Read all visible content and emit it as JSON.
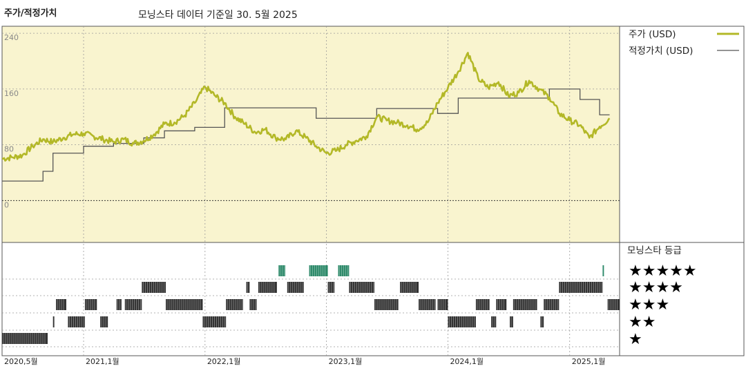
{
  "header": {
    "left_title": "주가/적정가치",
    "sub_title": "모닝스타 데이터 기준일 30. 5월 2025"
  },
  "legend": {
    "price_label": "주가 (USD)",
    "fair_label": "적정가치 (USD)",
    "price_color": "#b3b827",
    "fair_color": "#555555",
    "rating_title": "모닝스타 등급"
  },
  "chart_data": [
    {
      "type": "line",
      "x_start": "2020-05",
      "x_end": "2025-05",
      "ylim": [
        -60,
        250
      ],
      "y_ticks": [
        "240",
        "160",
        "80",
        "0"
      ],
      "x_ticks": [
        "2020,5월",
        "2021,1월",
        "2022,1월",
        "2023,1월",
        "2024,1월",
        "2025,1월"
      ],
      "grid": true,
      "legend_position": "right",
      "series": [
        {
          "name": "주가 (USD)",
          "color": "#b3b827",
          "points": [
            [
              "2020-05-01",
              60
            ],
            [
              "2020-06-01",
              62
            ],
            [
              "2020-07-01",
              65
            ],
            [
              "2020-08-01",
              78
            ],
            [
              "2020-09-01",
              88
            ],
            [
              "2020-10-01",
              84
            ],
            [
              "2020-11-01",
              90
            ],
            [
              "2020-12-01",
              95
            ],
            [
              "2021-01-01",
              96
            ],
            [
              "2021-02-01",
              92
            ],
            [
              "2021-03-01",
              88
            ],
            [
              "2021-04-01",
              84
            ],
            [
              "2021-05-01",
              88
            ],
            [
              "2021-06-01",
              82
            ],
            [
              "2021-07-01",
              86
            ],
            [
              "2021-08-01",
              95
            ],
            [
              "2021-09-01",
              110
            ],
            [
              "2021-10-01",
              112
            ],
            [
              "2021-11-01",
              122
            ],
            [
              "2021-12-01",
              140
            ],
            [
              "2022-01-01",
              163
            ],
            [
              "2022-02-01",
              150
            ],
            [
              "2022-03-01",
              140
            ],
            [
              "2022-04-01",
              120
            ],
            [
              "2022-05-01",
              110
            ],
            [
              "2022-06-01",
              98
            ],
            [
              "2022-07-01",
              102
            ],
            [
              "2022-08-01",
              90
            ],
            [
              "2022-09-01",
              88
            ],
            [
              "2022-10-01",
              100
            ],
            [
              "2022-11-01",
              90
            ],
            [
              "2022-12-01",
              78
            ],
            [
              "2023-01-01",
              68
            ],
            [
              "2023-02-01",
              72
            ],
            [
              "2023-03-01",
              80
            ],
            [
              "2023-04-01",
              86
            ],
            [
              "2023-05-01",
              92
            ],
            [
              "2023-06-01",
              120
            ],
            [
              "2023-07-01",
              115
            ],
            [
              "2023-08-01",
              112
            ],
            [
              "2023-09-01",
              108
            ],
            [
              "2023-10-01",
              102
            ],
            [
              "2023-11-01",
              112
            ],
            [
              "2023-12-01",
              140
            ],
            [
              "2024-01-01",
              162
            ],
            [
              "2024-02-01",
              185
            ],
            [
              "2024-03-01",
              212
            ],
            [
              "2024-04-01",
              175
            ],
            [
              "2024-05-01",
              162
            ],
            [
              "2024-06-01",
              170
            ],
            [
              "2024-07-01",
              150
            ],
            [
              "2024-08-01",
              155
            ],
            [
              "2024-09-01",
              172
            ],
            [
              "2024-10-01",
              160
            ],
            [
              "2024-11-01",
              148
            ],
            [
              "2024-12-01",
              125
            ],
            [
              "2025-01-01",
              115
            ],
            [
              "2025-02-01",
              108
            ],
            [
              "2025-03-01",
              90
            ],
            [
              "2025-04-01",
              106
            ],
            [
              "2025-05-01",
              118
            ]
          ]
        },
        {
          "name": "적정가치 (USD)",
          "color": "#555555",
          "step": true,
          "points": [
            [
              "2020-05-01",
              28
            ],
            [
              "2020-09-01",
              42
            ],
            [
              "2020-10-01",
              68
            ],
            [
              "2021-01-01",
              78
            ],
            [
              "2021-04-01",
              82
            ],
            [
              "2021-07-01",
              90
            ],
            [
              "2021-09-01",
              100
            ],
            [
              "2021-12-01",
              105
            ],
            [
              "2022-03-01",
              133
            ],
            [
              "2022-12-01",
              118
            ],
            [
              "2023-06-01",
              132
            ],
            [
              "2023-12-01",
              125
            ],
            [
              "2024-02-01",
              147
            ],
            [
              "2024-11-01",
              160
            ],
            [
              "2025-02-01",
              145
            ],
            [
              "2025-04-01",
              123
            ],
            [
              "2025-05-01",
              123
            ]
          ]
        }
      ]
    },
    {
      "type": "heatmap",
      "title": "모닝스타 등급",
      "levels": [
        5,
        4,
        3,
        2,
        1
      ],
      "star_labels": [
        "★★★★★",
        "★★★★",
        "★★★",
        "★★",
        "★"
      ],
      "periods": [
        {
          "stars": 1,
          "start": "2020-05-01",
          "end": "2020-09-15"
        },
        {
          "stars": 2,
          "start": "2020-10-01",
          "end": "2020-10-05"
        },
        {
          "stars": 3,
          "start": "2020-10-10",
          "end": "2020-11-10"
        },
        {
          "stars": 2,
          "start": "2020-11-15",
          "end": "2021-01-05"
        },
        {
          "stars": 3,
          "start": "2021-01-05",
          "end": "2021-02-10"
        },
        {
          "stars": 2,
          "start": "2021-02-20",
          "end": "2021-03-15"
        },
        {
          "stars": 3,
          "start": "2021-04-10",
          "end": "2021-04-25"
        },
        {
          "stars": 3,
          "start": "2021-05-05",
          "end": "2021-06-25"
        },
        {
          "stars": 4,
          "start": "2021-06-25",
          "end": "2021-09-05"
        },
        {
          "stars": 3,
          "start": "2021-09-05",
          "end": "2021-12-25"
        },
        {
          "stars": 2,
          "start": "2021-12-25",
          "end": "2022-03-05"
        },
        {
          "stars": 3,
          "start": "2022-03-05",
          "end": "2022-04-25"
        },
        {
          "stars": 4,
          "start": "2022-05-05",
          "end": "2022-05-15"
        },
        {
          "stars": 3,
          "start": "2022-05-15",
          "end": "2022-06-05"
        },
        {
          "stars": 4,
          "start": "2022-06-10",
          "end": "2022-08-05"
        },
        {
          "stars": 5,
          "start": "2022-08-10",
          "end": "2022-08-30"
        },
        {
          "stars": 4,
          "start": "2022-09-05",
          "end": "2022-10-25"
        },
        {
          "stars": 5,
          "start": "2022-11-10",
          "end": "2023-01-05"
        },
        {
          "stars": 4,
          "start": "2023-01-05",
          "end": "2023-01-25"
        },
        {
          "stars": 5,
          "start": "2023-02-05",
          "end": "2023-03-10"
        },
        {
          "stars": 4,
          "start": "2023-03-10",
          "end": "2023-05-25"
        },
        {
          "stars": 3,
          "start": "2023-05-25",
          "end": "2023-08-05"
        },
        {
          "stars": 4,
          "start": "2023-08-10",
          "end": "2023-10-05"
        },
        {
          "stars": 3,
          "start": "2023-10-05",
          "end": "2023-11-25"
        },
        {
          "stars": 3,
          "start": "2023-12-01",
          "end": "2024-01-01"
        },
        {
          "stars": 2,
          "start": "2024-01-01",
          "end": "2024-03-25"
        },
        {
          "stars": 3,
          "start": "2024-03-25",
          "end": "2024-05-05"
        },
        {
          "stars": 2,
          "start": "2024-05-10",
          "end": "2024-05-25"
        },
        {
          "stars": 3,
          "start": "2024-05-25",
          "end": "2024-06-25"
        },
        {
          "stars": 2,
          "start": "2024-07-05",
          "end": "2024-07-15"
        },
        {
          "stars": 3,
          "start": "2024-07-15",
          "end": "2024-09-25"
        },
        {
          "stars": 2,
          "start": "2024-10-05",
          "end": "2024-10-15"
        },
        {
          "stars": 3,
          "start": "2024-10-15",
          "end": "2024-11-30"
        },
        {
          "stars": 4,
          "start": "2024-11-30",
          "end": "2025-04-10"
        },
        {
          "stars": 5,
          "start": "2025-04-10",
          "end": "2025-04-14"
        },
        {
          "stars": 3,
          "start": "2025-04-25",
          "end": "2025-05-31"
        }
      ]
    }
  ]
}
